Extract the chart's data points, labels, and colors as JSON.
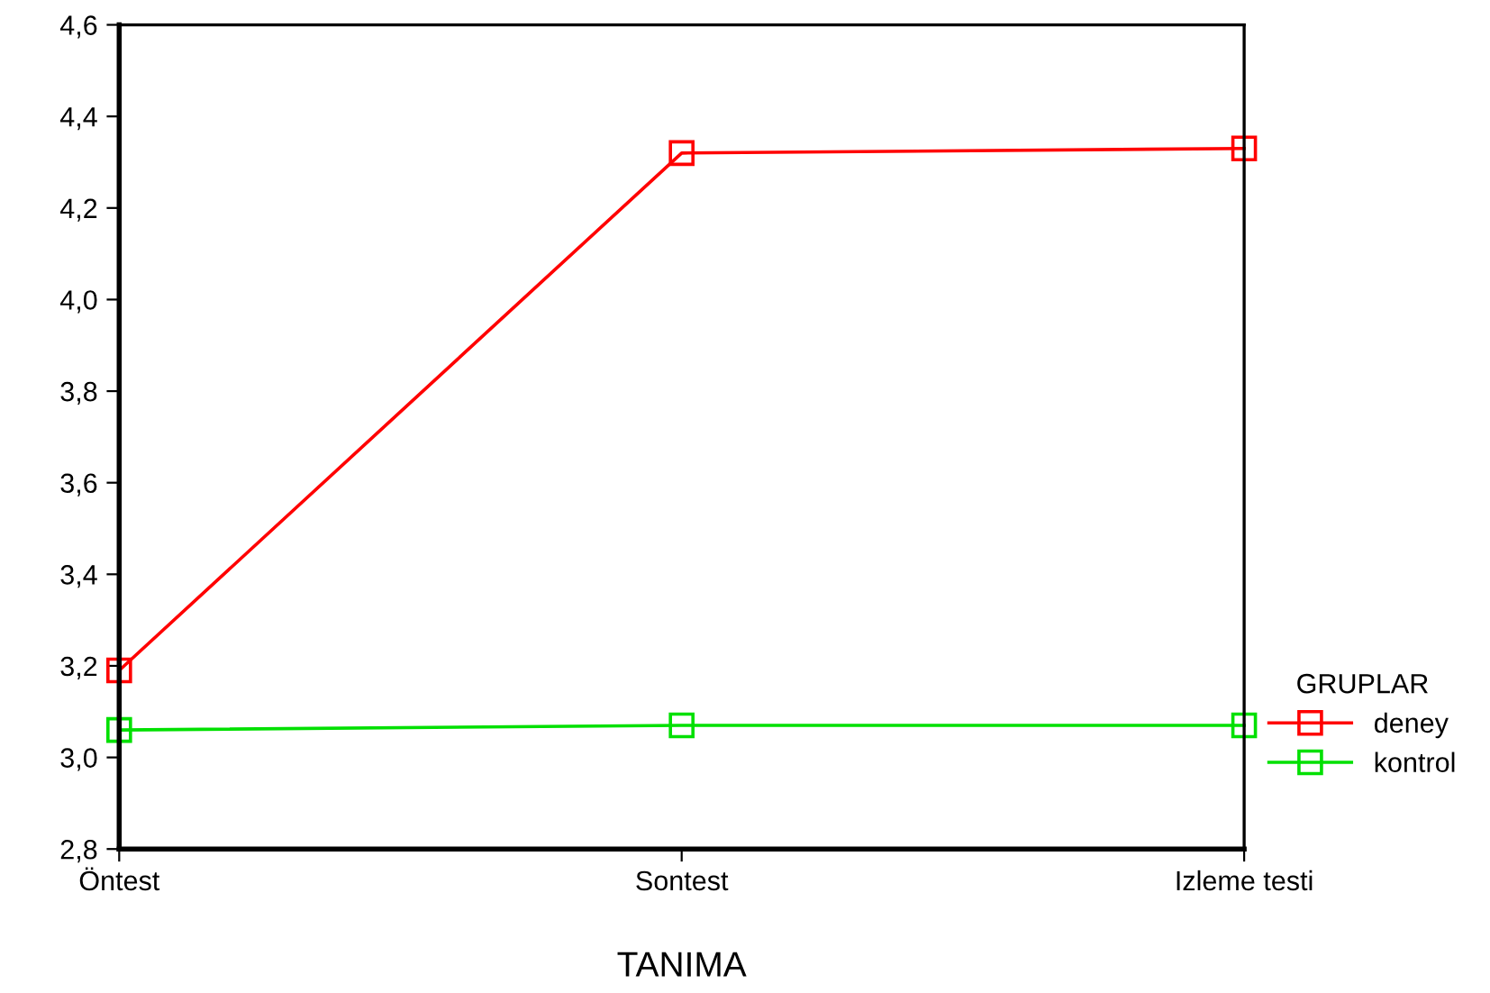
{
  "chart_data": {
    "type": "line",
    "xlabel": "TANIMA",
    "legend_title": "GRUPLAR",
    "categories": [
      "Öntest",
      "Sontest",
      "Izleme testi"
    ],
    "series": [
      {
        "name": "deney",
        "color": "#ff0000",
        "values": [
          3.19,
          4.32,
          4.33
        ]
      },
      {
        "name": "kontrol",
        "color": "#00e000",
        "values": [
          3.06,
          3.07,
          3.07
        ]
      }
    ],
    "ylim": [
      2.8,
      4.6
    ],
    "yticks": [
      {
        "value": 2.8,
        "label": "2,8"
      },
      {
        "value": 3.0,
        "label": "3,0"
      },
      {
        "value": 3.2,
        "label": "3,2"
      },
      {
        "value": 3.4,
        "label": "3,4"
      },
      {
        "value": 3.6,
        "label": "3,6"
      },
      {
        "value": 3.8,
        "label": "3,8"
      },
      {
        "value": 4.0,
        "label": "4,0"
      },
      {
        "value": 4.2,
        "label": "4,2"
      },
      {
        "value": 4.4,
        "label": "4,4"
      },
      {
        "value": 4.6,
        "label": "4,6"
      }
    ],
    "marker": "square",
    "line_style": "solid",
    "grid": false,
    "legend": "right"
  }
}
